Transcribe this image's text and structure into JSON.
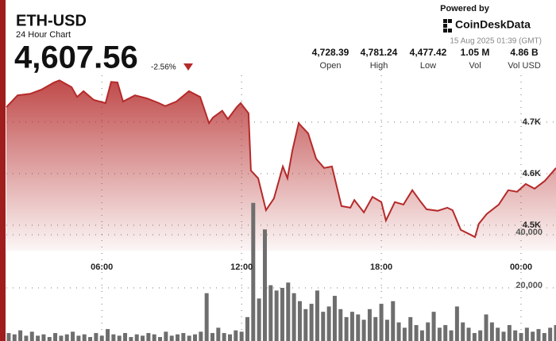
{
  "header": {
    "title": "ETH-USD",
    "subtitle": "24 Hour Chart",
    "price": "4,607.56",
    "change": "-2.56%"
  },
  "branding": {
    "powered_by": "Powered by",
    "logo_text": "CoinDeskData",
    "timestamp": "15 Aug 2025 01:39 (GMT)"
  },
  "stats": [
    {
      "value": "4,728.39",
      "label": "Open"
    },
    {
      "value": "4,781.24",
      "label": "High"
    },
    {
      "value": "4,477.42",
      "label": "Low"
    },
    {
      "value": "1.05 M",
      "label": "Vol"
    },
    {
      "value": "4.86 B",
      "label": "Vol USD"
    }
  ],
  "chart_data": [
    {
      "type": "area",
      "color": "#b52a2a",
      "x": [
        1.9,
        2.38,
        2.92,
        3.4,
        3.95,
        4.18,
        4.7,
        4.94,
        5.21,
        5.65,
        6.16,
        6.4,
        6.67,
        6.91,
        7.42,
        7.94,
        8.45,
        8.72,
        9.2,
        9.74,
        10.22,
        10.6,
        10.77,
        11.17,
        11.41,
        11.79,
        11.96,
        12.3,
        12.4,
        12.71,
        13.05,
        13.39,
        13.77,
        13.97,
        14.18,
        14.45,
        14.86,
        15.2,
        15.54,
        15.88,
        16.29,
        16.67,
        16.84,
        17.25,
        17.62,
        18.0,
        18.2,
        18.58,
        18.95,
        19.33,
        19.7,
        19.94,
        20.42,
        20.83,
        21.06,
        21.41,
        21.81,
        22.02,
        22.19,
        22.53,
        23.04,
        23.45,
        23.83,
        24.2,
        24.58,
        25.02,
        25.5
      ],
      "values": [
        4729,
        4752,
        4755,
        4763,
        4777,
        4781,
        4768,
        4749,
        4760,
        4743,
        4737,
        4778,
        4777,
        4740,
        4752,
        4746,
        4737,
        4731,
        4740,
        4760,
        4749,
        4698,
        4709,
        4722,
        4706,
        4729,
        4737,
        4717,
        4606,
        4591,
        4529,
        4552,
        4614,
        4591,
        4645,
        4698,
        4678,
        4629,
        4611,
        4614,
        4537,
        4534,
        4549,
        4525,
        4555,
        4545,
        4509,
        4545,
        4540,
        4568,
        4545,
        4531,
        4528,
        4534,
        4529,
        4491,
        4482,
        4477,
        4503,
        4522,
        4540,
        4568,
        4565,
        4580,
        4571,
        4586,
        4611
      ],
      "xlim": [
        1.9,
        25.5
      ],
      "xticks": [
        {
          "value": 6,
          "label": "06:00"
        },
        {
          "value": 12,
          "label": "12:00"
        },
        {
          "value": 18,
          "label": "18:00"
        },
        {
          "value": 24,
          "label": "00:00"
        }
      ],
      "ylim": [
        4450,
        4800
      ],
      "yticks": [
        {
          "value": 4500,
          "label": "4.5K"
        },
        {
          "value": 4600,
          "label": "4.6K"
        },
        {
          "value": 4700,
          "label": "4.7K"
        }
      ],
      "grid": true
    },
    {
      "type": "bar",
      "color": "#6e6e6e",
      "x": [
        2.0,
        2.25,
        2.5,
        2.75,
        3.0,
        3.25,
        3.5,
        3.75,
        4.0,
        4.25,
        4.5,
        4.75,
        5.0,
        5.25,
        5.5,
        5.75,
        6.0,
        6.25,
        6.5,
        6.75,
        7.0,
        7.25,
        7.5,
        7.75,
        8.0,
        8.25,
        8.5,
        8.75,
        9.0,
        9.25,
        9.5,
        9.75,
        10.0,
        10.25,
        10.5,
        10.75,
        11.0,
        11.25,
        11.5,
        11.75,
        12.0,
        12.25,
        12.5,
        12.75,
        13.0,
        13.25,
        13.5,
        13.75,
        14.0,
        14.25,
        14.5,
        14.75,
        15.0,
        15.25,
        15.5,
        15.75,
        16.0,
        16.25,
        16.5,
        16.75,
        17.0,
        17.25,
        17.5,
        17.75,
        18.0,
        18.25,
        18.5,
        18.75,
        19.0,
        19.25,
        19.5,
        19.75,
        20.0,
        20.25,
        20.5,
        20.75,
        21.0,
        21.25,
        21.5,
        21.75,
        22.0,
        22.25,
        22.5,
        22.75,
        23.0,
        23.25,
        23.5,
        23.75,
        24.0,
        24.25,
        24.5,
        24.75,
        25.0,
        25.25,
        25.5
      ],
      "values": [
        3000,
        2500,
        4000,
        2000,
        3500,
        2000,
        2500,
        1500,
        3000,
        2000,
        2500,
        3500,
        2000,
        2500,
        1500,
        3000,
        2000,
        4500,
        2500,
        2000,
        3000,
        1500,
        2500,
        2000,
        3000,
        2500,
        1500,
        3500,
        2000,
        2500,
        3000,
        2000,
        2500,
        3500,
        18000,
        3000,
        5000,
        3000,
        2500,
        4000,
        3500,
        9000,
        52000,
        16000,
        42000,
        21000,
        19000,
        20000,
        22000,
        18000,
        15000,
        12000,
        14000,
        19000,
        11000,
        13000,
        17000,
        12000,
        9000,
        11000,
        10000,
        8000,
        12000,
        9000,
        14000,
        8000,
        15000,
        7000,
        5000,
        9000,
        6000,
        4000,
        7000,
        11000,
        5000,
        6000,
        4000,
        13000,
        7000,
        5000,
        3000,
        4000,
        10000,
        7000,
        5000,
        3500,
        6000,
        4000,
        3000,
        5000,
        3500,
        4500,
        3000,
        5000,
        6000
      ],
      "ylim": [
        0,
        60000
      ],
      "yticks": [
        {
          "value": 20000,
          "label": "20,000"
        },
        {
          "value": 40000,
          "label": "40,000"
        }
      ],
      "grid": true
    }
  ]
}
